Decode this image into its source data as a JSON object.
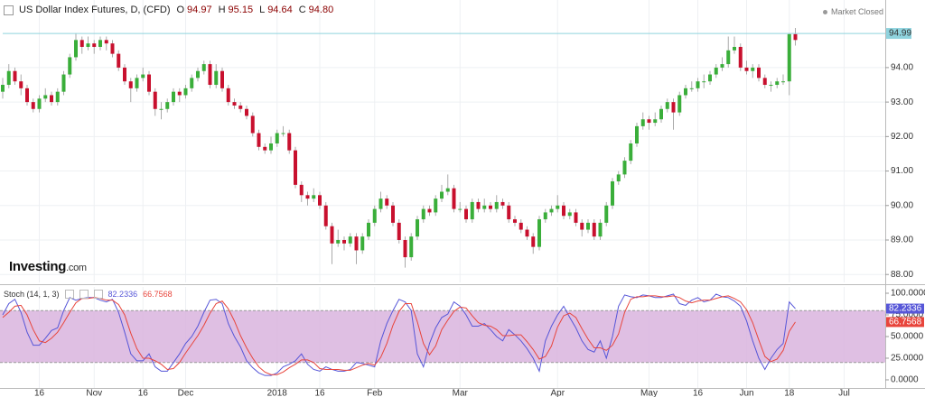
{
  "chart_data": [
    {
      "type": "candlestick",
      "title": "US Dollar Index Futures, D, (CFD)",
      "ohlc": [
        {
          "key": "O",
          "text": "94.97"
        },
        {
          "key": "H",
          "text": "95.15"
        },
        {
          "key": "L",
          "text": "94.64"
        },
        {
          "key": "C",
          "text": "94.80"
        }
      ],
      "status": "Market Closed",
      "logo": "Investing",
      "logo_suffix": ".com",
      "categories": [
        null,
        null,
        null,
        null,
        null,
        null,
        "16",
        null,
        null,
        null,
        null,
        null,
        null,
        null,
        null,
        "Nov",
        null,
        null,
        null,
        null,
        null,
        null,
        null,
        "16",
        null,
        null,
        null,
        null,
        null,
        null,
        "Dec",
        null,
        null,
        null,
        null,
        null,
        null,
        null,
        null,
        null,
        null,
        null,
        null,
        null,
        null,
        "2018",
        null,
        null,
        null,
        null,
        null,
        null,
        "16",
        null,
        null,
        null,
        null,
        null,
        null,
        null,
        null,
        "Feb",
        null,
        null,
        null,
        null,
        null,
        null,
        null,
        null,
        null,
        null,
        null,
        null,
        null,
        "Mar",
        null,
        null,
        null,
        null,
        null,
        null,
        null,
        null,
        null,
        null,
        null,
        null,
        null,
        null,
        null,
        "Apr",
        null,
        null,
        null,
        null,
        null,
        null,
        null,
        null,
        null,
        null,
        null,
        null,
        null,
        null,
        "May",
        null,
        null,
        null,
        null,
        null,
        null,
        null,
        "16",
        null,
        null,
        null,
        null,
        null,
        null,
        null,
        "Jun",
        null,
        null,
        null,
        null,
        null,
        null,
        "18",
        null,
        null,
        null,
        null,
        null,
        null,
        null,
        null,
        "Jul",
        null,
        null
      ],
      "open": [
        93.3,
        93.5,
        93.9,
        93.6,
        93.4,
        93.0,
        92.8,
        93.1,
        93.2,
        93.0,
        93.3,
        93.8,
        94.3,
        94.8,
        94.6,
        94.7,
        94.6,
        94.8,
        94.7,
        94.4,
        94.0,
        93.6,
        93.4,
        93.7,
        93.8,
        93.3,
        92.8,
        92.8,
        93.0,
        93.3,
        93.2,
        93.4,
        93.7,
        93.9,
        94.1,
        93.5,
        93.9,
        93.4,
        93.0,
        92.9,
        92.8,
        92.6,
        92.1,
        91.7,
        91.6,
        91.8,
        92.1,
        92.1,
        91.6,
        90.6,
        90.3,
        90.2,
        90.3,
        90.0,
        89.4,
        88.9,
        89.0,
        88.9,
        89.1,
        88.7,
        89.1,
        89.5,
        89.9,
        90.2,
        90.0,
        89.5,
        89.0,
        88.5,
        89.1,
        89.6,
        89.9,
        89.8,
        90.2,
        90.4,
        90.5,
        89.9,
        89.9,
        89.6,
        90.1,
        89.9,
        90.0,
        89.9,
        90.1,
        90.0,
        89.6,
        89.5,
        89.3,
        89.1,
        88.8,
        89.6,
        89.8,
        89.9,
        90.0,
        89.7,
        89.8,
        89.5,
        89.3,
        89.5,
        89.1,
        89.5,
        90.0,
        90.7,
        90.9,
        91.3,
        91.8,
        92.3,
        92.5,
        92.4,
        92.5,
        92.8,
        93.0,
        92.7,
        93.2,
        93.4,
        93.4,
        93.6,
        93.6,
        93.8,
        94.0,
        94.1,
        94.5,
        94.6,
        94.0,
        93.9,
        94.0,
        93.7,
        93.5,
        93.5,
        93.6,
        93.6,
        94.97,
        null,
        null,
        null,
        null,
        null,
        null,
        null,
        null,
        null,
        null
      ],
      "high": [
        93.7,
        94.1,
        94.0,
        93.8,
        93.5,
        93.1,
        93.2,
        93.4,
        93.3,
        93.4,
        93.9,
        94.4,
        95.0,
        94.9,
        94.9,
        94.8,
        94.9,
        94.9,
        94.8,
        94.5,
        94.1,
        93.7,
        93.8,
        94.0,
        93.9,
        93.4,
        93.0,
        93.1,
        93.4,
        93.4,
        93.5,
        93.8,
        94.0,
        94.2,
        94.2,
        94.1,
        94.0,
        93.5,
        93.1,
        93.0,
        92.9,
        92.7,
        92.2,
        91.8,
        92.0,
        92.2,
        92.3,
        92.2,
        91.7,
        90.7,
        90.4,
        90.5,
        90.4,
        90.1,
        89.5,
        89.3,
        89.1,
        89.2,
        89.2,
        89.2,
        89.6,
        90.0,
        90.4,
        90.3,
        90.1,
        89.6,
        89.1,
        89.2,
        89.7,
        90.0,
        90.0,
        90.3,
        90.6,
        90.9,
        90.6,
        90.1,
        90.0,
        90.2,
        90.2,
        90.2,
        90.1,
        90.3,
        90.2,
        90.1,
        89.7,
        89.6,
        89.4,
        89.2,
        89.7,
        89.9,
        90.0,
        90.3,
        90.1,
        89.9,
        89.9,
        89.6,
        89.6,
        89.6,
        89.6,
        90.1,
        90.8,
        91.0,
        91.4,
        91.9,
        92.4,
        92.7,
        92.6,
        92.7,
        92.9,
        93.1,
        93.1,
        93.3,
        93.5,
        93.6,
        93.7,
        93.8,
        93.9,
        94.1,
        94.3,
        94.9,
        94.9,
        94.7,
        94.2,
        94.1,
        94.1,
        93.8,
        93.6,
        93.7,
        93.8,
        95.0,
        95.15,
        null,
        null,
        null,
        null,
        null,
        null,
        null,
        null,
        null,
        null
      ],
      "low": [
        93.1,
        93.4,
        93.5,
        93.2,
        92.9,
        92.7,
        92.7,
        93.0,
        92.9,
        92.9,
        93.2,
        93.7,
        94.2,
        94.4,
        94.5,
        94.4,
        94.5,
        94.5,
        94.3,
        93.9,
        93.5,
        93.0,
        93.3,
        93.6,
        93.2,
        92.6,
        92.5,
        92.7,
        92.9,
        93.0,
        93.1,
        93.3,
        93.6,
        93.8,
        93.4,
        93.4,
        93.3,
        92.9,
        92.8,
        92.7,
        92.5,
        92.0,
        91.6,
        91.5,
        91.5,
        91.7,
        92.0,
        91.5,
        90.5,
        90.1,
        90.0,
        90.1,
        89.9,
        89.3,
        88.3,
        88.8,
        88.7,
        88.8,
        88.3,
        88.6,
        89.0,
        89.4,
        89.8,
        89.9,
        89.4,
        88.9,
        88.2,
        88.4,
        89.0,
        89.5,
        89.7,
        89.7,
        90.1,
        90.3,
        89.8,
        89.8,
        89.5,
        89.5,
        89.8,
        89.8,
        89.8,
        89.8,
        89.9,
        89.5,
        89.4,
        89.2,
        89.0,
        88.6,
        88.7,
        89.5,
        89.7,
        89.8,
        89.6,
        89.6,
        89.4,
        89.1,
        89.2,
        89.0,
        89.0,
        89.4,
        89.9,
        90.6,
        90.8,
        91.2,
        91.7,
        92.2,
        92.2,
        92.3,
        92.4,
        92.7,
        92.2,
        92.6,
        93.1,
        93.3,
        93.3,
        93.4,
        93.5,
        93.7,
        93.9,
        94.0,
        94.4,
        93.9,
        93.8,
        93.7,
        93.6,
        93.4,
        93.3,
        93.4,
        93.5,
        93.2,
        94.64,
        null,
        null,
        null,
        null,
        null,
        null,
        null,
        null,
        null,
        null
      ],
      "close": [
        93.5,
        93.9,
        93.6,
        93.4,
        93.0,
        92.8,
        93.1,
        93.2,
        93.0,
        93.3,
        93.8,
        94.3,
        94.8,
        94.6,
        94.7,
        94.6,
        94.8,
        94.7,
        94.4,
        94.0,
        93.6,
        93.4,
        93.7,
        93.8,
        93.3,
        92.8,
        92.8,
        93.0,
        93.3,
        93.2,
        93.4,
        93.7,
        93.9,
        94.1,
        93.5,
        93.9,
        93.4,
        93.0,
        92.9,
        92.8,
        92.6,
        92.1,
        91.7,
        91.6,
        91.8,
        92.1,
        92.1,
        91.6,
        90.6,
        90.3,
        90.2,
        90.3,
        90.0,
        89.4,
        88.9,
        89.0,
        88.9,
        89.1,
        88.7,
        89.1,
        89.5,
        89.9,
        90.2,
        90.0,
        89.5,
        89.0,
        88.5,
        89.1,
        89.6,
        89.9,
        89.8,
        90.2,
        90.4,
        90.5,
        89.9,
        89.9,
        89.6,
        90.1,
        89.9,
        90.0,
        89.9,
        90.1,
        90.0,
        89.6,
        89.5,
        89.3,
        89.1,
        88.8,
        89.6,
        89.8,
        89.9,
        90.0,
        89.7,
        89.8,
        89.5,
        89.3,
        89.5,
        89.1,
        89.5,
        90.0,
        90.7,
        90.9,
        91.3,
        91.8,
        92.3,
        92.5,
        92.4,
        92.5,
        92.8,
        93.0,
        92.7,
        93.2,
        93.4,
        93.4,
        93.6,
        93.6,
        93.8,
        94.0,
        94.1,
        94.5,
        94.6,
        94.0,
        93.9,
        94.0,
        93.7,
        93.5,
        93.5,
        93.6,
        93.6,
        94.97,
        94.8,
        null,
        null,
        null,
        null,
        null,
        null,
        null,
        null,
        null,
        null
      ],
      "up_color": "#3aae3a",
      "down_color": "#c8102e",
      "ylim": [
        87.77,
        95.96
      ],
      "yticks": [
        {
          "value": 88,
          "label": "88.00"
        },
        {
          "value": 89,
          "label": "89.00"
        },
        {
          "value": 90,
          "label": "90.00"
        },
        {
          "value": 91,
          "label": "91.00"
        },
        {
          "value": 92,
          "label": "92.00"
        },
        {
          "value": 93,
          "label": "93.00"
        },
        {
          "value": 94,
          "label": "94.00"
        }
      ],
      "last_price": 94.99,
      "last_price_color": "#8fd3de",
      "grid": true
    },
    {
      "type": "line",
      "title": "Stoch (14, 1, 3)",
      "series": [
        {
          "color": "#5656d8",
          "values": [
            75,
            88,
            93,
            78,
            55,
            40,
            40,
            48,
            57,
            60,
            80,
            95,
            92,
            94,
            95,
            95,
            92,
            90,
            93,
            78,
            55,
            30,
            22,
            22,
            30,
            15,
            10,
            10,
            20,
            30,
            42,
            50,
            62,
            78,
            92,
            93,
            88,
            65,
            50,
            38,
            22,
            14,
            8,
            5,
            5,
            8,
            15,
            18,
            22,
            30,
            18,
            12,
            10,
            15,
            12,
            10,
            10,
            12,
            20,
            19,
            17,
            15,
            45,
            65,
            80,
            93,
            90,
            80,
            30,
            15,
            42,
            60,
            72,
            76,
            90,
            85,
            75,
            62,
            62,
            65,
            58,
            50,
            45,
            58,
            52,
            45,
            36,
            25,
            10,
            45,
            62,
            75,
            85,
            72,
            60,
            45,
            35,
            32,
            45,
            25,
            50,
            85,
            98,
            96,
            95,
            98,
            97,
            95,
            95,
            97,
            99,
            88,
            86,
            92,
            95,
            90,
            92,
            99,
            96,
            95,
            91,
            85,
            68,
            45,
            25,
            12,
            25,
            35,
            42,
            90,
            82.2336,
            null,
            null,
            null,
            null,
            null,
            null,
            null,
            null,
            null,
            null
          ]
        },
        {
          "color": "#e8453c",
          "values": [
            72,
            78,
            85,
            86,
            75,
            58,
            45,
            43,
            48,
            55,
            66,
            78,
            89,
            94,
            94,
            95,
            94,
            92,
            92,
            87,
            75,
            54,
            36,
            25,
            25,
            22,
            18,
            12,
            13,
            20,
            31,
            41,
            51,
            63,
            77,
            88,
            91,
            82,
            68,
            51,
            37,
            25,
            15,
            9,
            6,
            6,
            9,
            14,
            18,
            23,
            23,
            20,
            13,
            12,
            12,
            12,
            11,
            11,
            14,
            17,
            19,
            17,
            26,
            42,
            63,
            79,
            88,
            88,
            67,
            42,
            29,
            39,
            58,
            69,
            79,
            84,
            83,
            74,
            66,
            63,
            62,
            58,
            51,
            51,
            52,
            52,
            44,
            35,
            24,
            27,
            39,
            61,
            74,
            77,
            72,
            59,
            47,
            37,
            37,
            34,
            40,
            53,
            78,
            93,
            96,
            96,
            97,
            97,
            96,
            96,
            97,
            95,
            91,
            89,
            91,
            92,
            92,
            94,
            96,
            97,
            94,
            90,
            81,
            66,
            46,
            27,
            21,
            24,
            34,
            56,
            66.7568,
            null,
            null,
            null,
            null,
            null,
            null,
            null,
            null,
            null,
            null
          ]
        }
      ],
      "band": [
        20,
        80
      ],
      "band_color": "#d9b4de",
      "ylim": [
        -9.4,
        107.3
      ],
      "yticks": [
        {
          "value": 0,
          "label": "0.0000"
        },
        {
          "value": 25,
          "label": "25.0000"
        },
        {
          "value": 50,
          "label": "50.0000"
        },
        {
          "value": 75,
          "label": "75.0000"
        },
        {
          "value": 100,
          "label": "100.0000"
        }
      ]
    }
  ]
}
